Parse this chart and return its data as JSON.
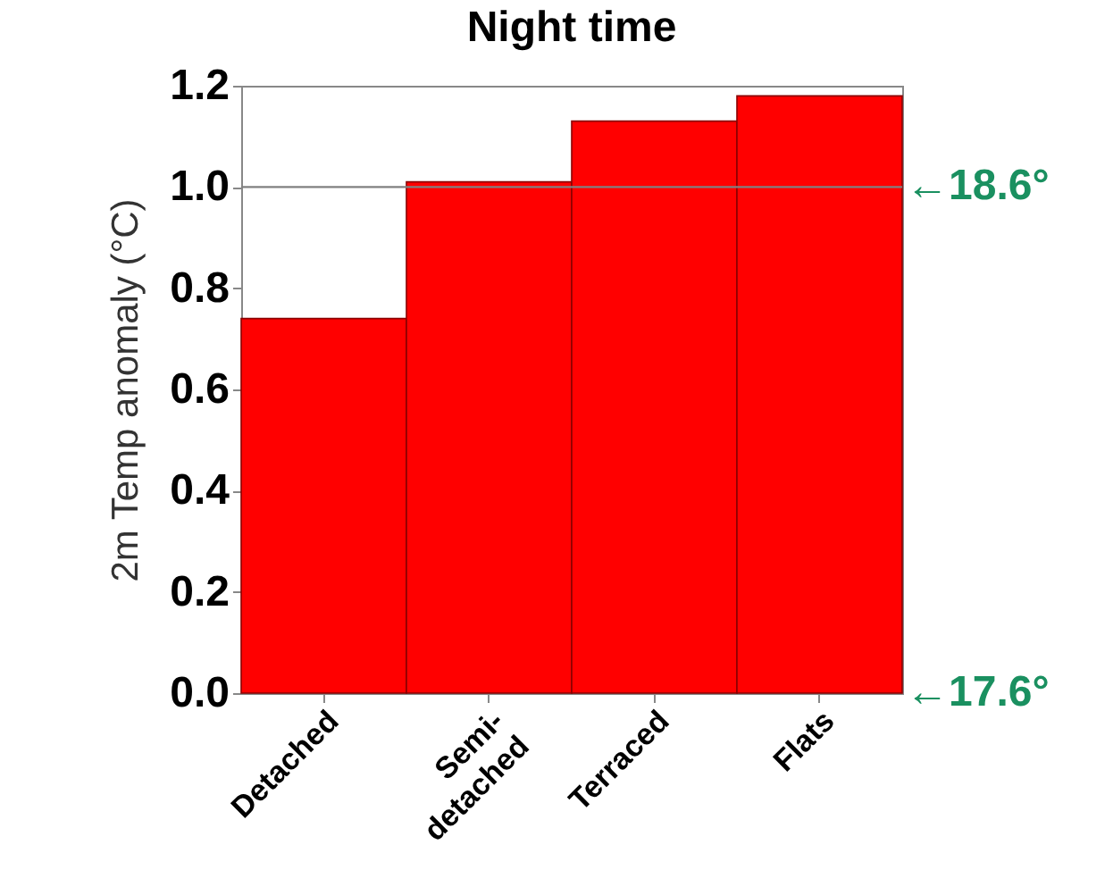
{
  "chart_data": {
    "type": "bar",
    "title": "Night time",
    "ylabel": "2m Temp anomaly (°C)",
    "categories": [
      "Detached",
      "Semi-\ndetached",
      "Terraced",
      "Flats"
    ],
    "values": [
      0.74,
      1.01,
      1.13,
      1.18
    ],
    "color": "#ff0000",
    "ylim": [
      0,
      1.2
    ],
    "yticks": [
      {
        "value": 0,
        "label": "0.0"
      },
      0.2,
      0.4,
      0.6,
      0.8,
      {
        "value": 1,
        "label": "1.0"
      },
      1.2
    ],
    "ref_lines": [
      {
        "axis": "y",
        "value": 1.0,
        "label": "←18.6°",
        "color": "#808080"
      }
    ],
    "annotations": [
      "←17.6°"
    ],
    "grid": false
  }
}
